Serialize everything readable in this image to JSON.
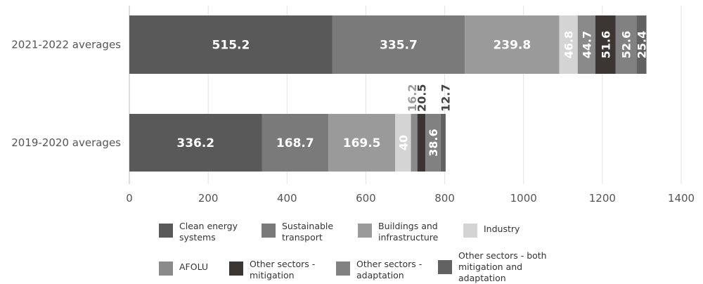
{
  "chart_data": {
    "type": "bar",
    "orientation": "horizontal",
    "stacked": true,
    "categories": [
      "2021-2022 averages",
      "2019-2020 averages"
    ],
    "series": [
      {
        "name": "Clean energy systems",
        "values": [
          515.2,
          336.2
        ],
        "labels": [
          "515.2",
          "336.2"
        ],
        "color": "#595959"
      },
      {
        "name": "Sustainable transport",
        "values": [
          335.7,
          168.7
        ],
        "labels": [
          "335.7",
          "168.7"
        ],
        "color": "#7a7a7a"
      },
      {
        "name": "Buildings and infrastructure",
        "values": [
          239.8,
          169.5
        ],
        "labels": [
          "239.8",
          "169.5"
        ],
        "color": "#9a9a9a"
      },
      {
        "name": "Industry",
        "values": [
          46.8,
          40
        ],
        "labels": [
          "46.8",
          "40"
        ],
        "color": "#d4d4d4"
      },
      {
        "name": "AFOLU",
        "values": [
          44.7,
          16.2
        ],
        "labels": [
          "44.7",
          "16.2"
        ],
        "color": "#8a8a8a"
      },
      {
        "name": "Other sectors - mitigation",
        "values": [
          51.6,
          20.5
        ],
        "labels": [
          "51.6",
          "20.5"
        ],
        "color": "#3b3633"
      },
      {
        "name": "Other sectors - adaptation",
        "values": [
          52.6,
          38.6
        ],
        "labels": [
          "52.6",
          "38.6"
        ],
        "color": "#818181"
      },
      {
        "name": "Other sectors - both mitigation and adaptation",
        "values": [
          25.4,
          12.7
        ],
        "labels": [
          "25.4",
          "12.7"
        ],
        "color": "#626262"
      }
    ],
    "xlim": [
      0,
      1400
    ],
    "xticks": [
      0,
      200,
      400,
      600,
      800,
      1000,
      1200,
      1400
    ],
    "xlabel": "",
    "ylabel": "",
    "title": "",
    "grid": true,
    "legend": "bottom"
  },
  "legend": {
    "items": [
      {
        "label": "Clean energy\nsystems",
        "color": "#595959"
      },
      {
        "label": "Sustainable\ntransport",
        "color": "#7a7a7a"
      },
      {
        "label": "Buildings and\ninfrastructure",
        "color": "#9a9a9a"
      },
      {
        "label": "Industry",
        "color": "#d4d4d4"
      },
      {
        "label": "AFOLU",
        "color": "#8a8a8a"
      },
      {
        "label": "Other sectors -\nmitigation",
        "color": "#3b3633"
      },
      {
        "label": "Other sectors -\nadaptation",
        "color": "#818181"
      },
      {
        "label": "Other sectors - both\nmitigation and\nadaptation",
        "color": "#626262"
      }
    ]
  }
}
